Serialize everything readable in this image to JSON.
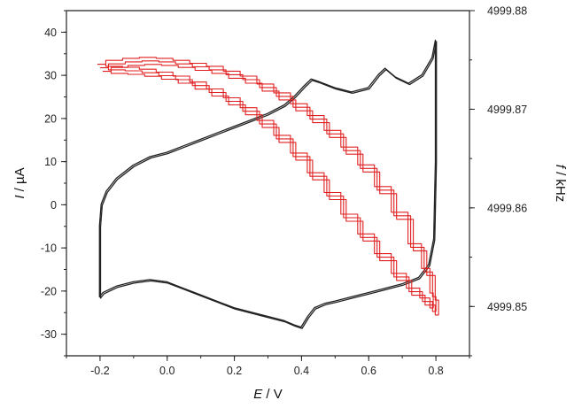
{
  "chart_data": {
    "type": "line",
    "xlabel_var": "E",
    "xlabel_unit": " / V",
    "ylabel_var": "I",
    "ylabel_unit": " / µA",
    "y2label_var": "f",
    "y2label_unit": " / kHz",
    "xlim": [
      -0.3,
      0.9
    ],
    "ylim": [
      -35,
      45
    ],
    "y2lim": [
      4999.845,
      4999.88
    ],
    "x_ticks": [
      "-0.2",
      "0.0",
      "0.2",
      "0.4",
      "0.6",
      "0.8"
    ],
    "y_ticks": [
      "-30",
      "-20",
      "-10",
      "0",
      "10",
      "20",
      "30",
      "40"
    ],
    "y2_ticks": [
      "4999.85",
      "4999.86",
      "4999.87",
      "4999.88"
    ],
    "grid": false,
    "series": [
      {
        "axis": "left",
        "color": "#222222",
        "cycles": 2,
        "x": [
          -0.2,
          -0.195,
          -0.18,
          -0.15,
          -0.1,
          -0.05,
          0.0,
          0.05,
          0.1,
          0.15,
          0.2,
          0.25,
          0.3,
          0.35,
          0.38,
          0.41,
          0.43,
          0.45,
          0.5,
          0.55,
          0.6,
          0.63,
          0.65,
          0.68,
          0.72,
          0.76,
          0.79,
          0.8,
          0.8,
          0.795,
          0.78,
          0.75,
          0.7,
          0.65,
          0.6,
          0.55,
          0.5,
          0.47,
          0.44,
          0.42,
          0.4,
          0.38,
          0.35,
          0.3,
          0.25,
          0.2,
          0.15,
          0.1,
          0.05,
          0.0,
          -0.05,
          -0.1,
          -0.15,
          -0.19,
          -0.2,
          -0.2
        ],
        "y": [
          -5,
          0,
          3,
          6,
          9,
          11,
          12,
          13.5,
          15,
          16.5,
          18,
          19.5,
          21,
          23,
          25,
          27.5,
          29,
          28.5,
          27,
          26,
          27,
          30,
          31.5,
          29.5,
          28,
          30,
          34,
          38,
          10,
          -8,
          -14,
          -17,
          -18.5,
          -19.5,
          -20.5,
          -21.5,
          -22.5,
          -23,
          -24,
          -26,
          -28.5,
          -28,
          -27,
          -26,
          -25,
          -24,
          -22.5,
          -21,
          -19.5,
          -18,
          -17.5,
          -18,
          -19,
          -20.5,
          -21.5,
          -5
        ]
      },
      {
        "axis": "right",
        "color": "#e02020",
        "cycles": 3,
        "x": [
          -0.2,
          -0.15,
          -0.1,
          -0.05,
          0.0,
          0.05,
          0.1,
          0.15,
          0.2,
          0.25,
          0.3,
          0.35,
          0.4,
          0.45,
          0.5,
          0.55,
          0.6,
          0.65,
          0.7,
          0.75,
          0.78,
          0.8,
          0.8,
          0.78,
          0.74,
          0.7,
          0.65,
          0.6,
          0.55,
          0.5,
          0.45,
          0.4,
          0.35,
          0.3,
          0.25,
          0.2,
          0.15,
          0.1,
          0.05,
          0.0,
          -0.05,
          -0.1,
          -0.15,
          -0.2
        ],
        "y": [
          4999.8742,
          4999.8746,
          4999.8748,
          4999.8749,
          4999.8748,
          4999.8746,
          4999.8743,
          4999.874,
          4999.8735,
          4999.873,
          4999.8722,
          4999.8713,
          4999.8702,
          4999.869,
          4999.8675,
          4999.8658,
          4999.864,
          4999.8618,
          4999.8592,
          4999.856,
          4999.8535,
          4999.851,
          4999.8495,
          4999.8505,
          4999.8515,
          4999.853,
          4999.855,
          4999.857,
          4999.859,
          4999.8612,
          4999.8632,
          4999.8652,
          4999.867,
          4999.8685,
          4999.8698,
          4999.8708,
          4999.8717,
          4999.8724,
          4999.873,
          4999.8734,
          4999.8737,
          4999.8739,
          4999.874,
          4999.8742
        ]
      }
    ]
  }
}
